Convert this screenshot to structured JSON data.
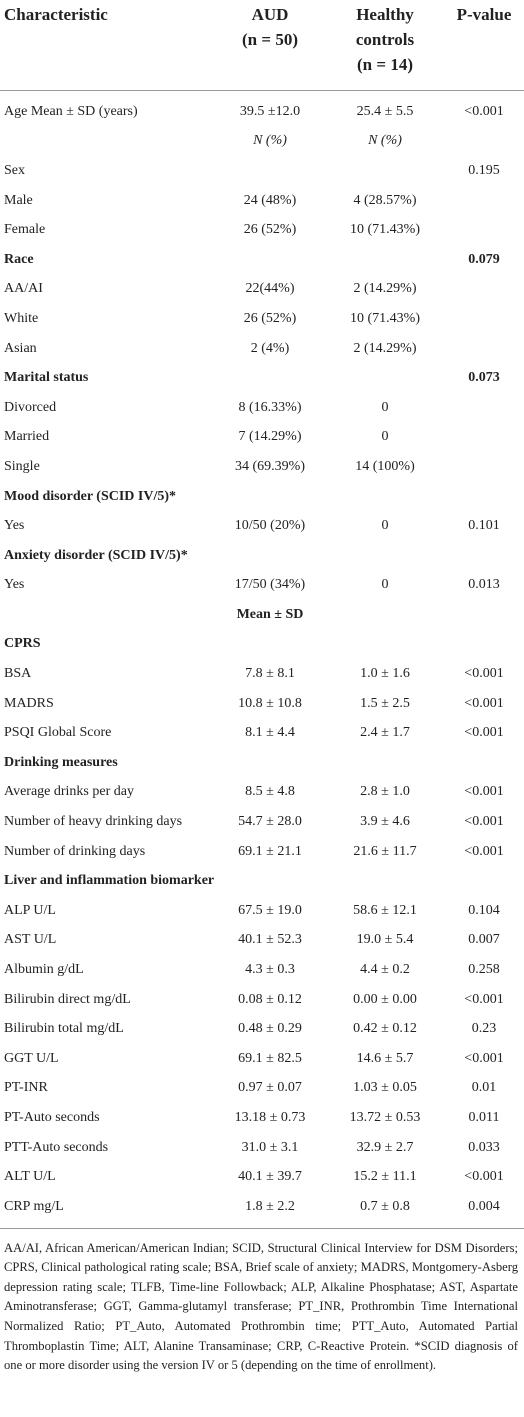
{
  "table": {
    "header": [
      "Characteristic",
      [
        "AUD",
        "(n = 50)"
      ],
      [
        "Healthy controls",
        "(n = 14)"
      ],
      "P-value"
    ],
    "rows": [
      [
        "Age Mean ± SD (years)",
        "39.5 ±12.0",
        "25.4 ± 5.5",
        "<0.001"
      ],
      [
        null,
        "N (%)",
        "N (%)",
        null
      ],
      [
        "Sex",
        null,
        null,
        "0.195"
      ],
      [
        "Male",
        "24 (48%)",
        "4 (28.57%)",
        null
      ],
      [
        "Female",
        "26 (52%)",
        "10 (71.43%)",
        null
      ],
      [
        "Race",
        null,
        null,
        "0.079"
      ],
      [
        "AA/AI",
        "22(44%)",
        "2 (14.29%)",
        null
      ],
      [
        "White",
        "26 (52%)",
        "10 (71.43%)",
        null
      ],
      [
        "Asian",
        "2 (4%)",
        "2 (14.29%)",
        null
      ],
      [
        "Marital status",
        null,
        null,
        "0.073"
      ],
      [
        "Divorced",
        "8 (16.33%)",
        "0",
        null
      ],
      [
        "Married",
        "7 (14.29%)",
        "0",
        null
      ],
      [
        "Single",
        "34 (69.39%)",
        "14 (100%)",
        null
      ],
      [
        "Mood disorder (SCID IV/5)*",
        null,
        null,
        null
      ],
      [
        "Yes",
        "10/50 (20%)",
        "0",
        "0.101"
      ],
      [
        "Anxiety disorder (SCID IV/5)*",
        null,
        null,
        null
      ],
      [
        "Yes",
        "17/50 (34%)",
        "0",
        "0.013"
      ],
      [
        null,
        "Mean ± SD",
        null,
        null
      ],
      [
        "CPRS",
        null,
        null,
        null
      ],
      [
        "BSA",
        "7.8 ± 8.1",
        "1.0 ± 1.6",
        "<0.001"
      ],
      [
        "MADRS",
        "10.8 ± 10.8",
        "1.5 ± 2.5",
        "<0.001"
      ],
      [
        "PSQI Global Score",
        "8.1 ± 4.4",
        "2.4 ± 1.7",
        "<0.001"
      ],
      [
        "Drinking measures",
        null,
        null,
        null
      ],
      [
        "Average drinks per day",
        "8.5 ± 4.8",
        "2.8 ± 1.0",
        "<0.001"
      ],
      [
        "Number of heavy drinking days",
        "54.7 ± 28.0",
        "3.9 ± 4.6",
        "<0.001"
      ],
      [
        "Number of drinking days",
        "69.1 ± 21.1",
        "21.6 ± 11.7",
        "<0.001"
      ],
      [
        "Liver and inflammation biomarker",
        null,
        null,
        null
      ],
      [
        "ALP U/L",
        "67.5 ± 19.0",
        "58.6 ± 12.1",
        "0.104"
      ],
      [
        "AST U/L",
        "40.1 ± 52.3",
        "19.0 ± 5.4",
        "0.007"
      ],
      [
        "Albumin g/dL",
        "4.3 ± 0.3",
        "4.4 ± 0.2",
        "0.258"
      ],
      [
        "Bilirubin direct mg/dL",
        "0.08 ± 0.12",
        "0.00 ± 0.00",
        "<0.001"
      ],
      [
        "Bilirubin total mg/dL",
        "0.48 ± 0.29",
        "0.42 ± 0.12",
        "0.23"
      ],
      [
        "GGT U/L",
        "69.1 ± 82.5",
        "14.6 ± 5.7",
        "<0.001"
      ],
      [
        "PT-INR",
        "0.97 ± 0.07",
        "1.03 ± 0.05",
        "0.01"
      ],
      [
        "PT-Auto seconds",
        "13.18 ± 0.73",
        "13.72 ± 0.53",
        "0.011"
      ],
      [
        "PTT-Auto seconds",
        "31.0 ± 3.1",
        "32.9 ± 2.7",
        "0.033"
      ],
      [
        "ALT U/L",
        "40.1 ± 39.7",
        "15.2 ± 11.1",
        "<0.001"
      ],
      [
        "CRP mg/L",
        "1.8 ± 2.2",
        "0.7 ± 0.8",
        "0.004"
      ]
    ],
    "footnote": "AA/AI, African American/American Indian; SCID, Structural Clinical Interview for DSM Disorders; CPRS, Clinical pathological rating scale; BSA, Brief scale of anxiety; MADRS, Montgomery-Asberg depression rating scale; TLFB, Time-line Followback; ALP, Alkaline Phosphatase; AST, Aspartate Aminotransferase; GGT, Gamma-glutamyl transferase; PT_INR, Prothrombin Time International Normalized Ratio; PT_Auto, Automated Prothrombin time; PTT_Auto, Automated Partial Thromboplastin Time; ALT, Alanine Transaminase; CRP, C-Reactive Protein. *SCID diagnosis of one or more disorder using the version IV or 5 (depending on the time of enrollment)."
  }
}
